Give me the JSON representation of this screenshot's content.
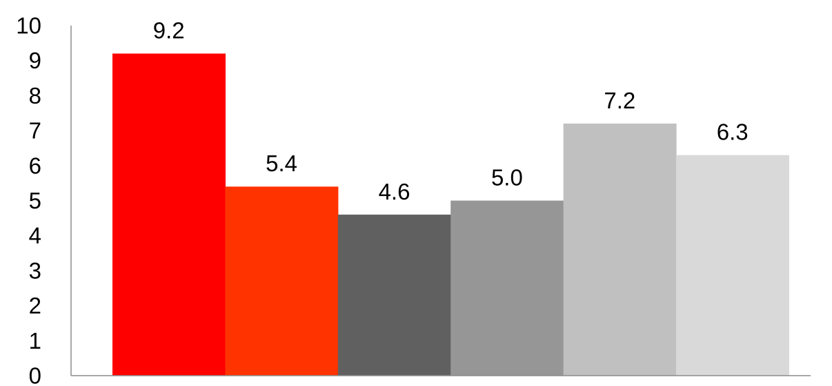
{
  "chart_data": {
    "type": "bar",
    "categories": [
      "",
      "",
      "",
      "",
      "",
      ""
    ],
    "values": [
      9.2,
      5.4,
      4.6,
      5.0,
      7.2,
      6.3
    ],
    "data_labels": [
      "9.2",
      "5.4",
      "4.6",
      "5.0",
      "7.2",
      "6.3"
    ],
    "colors": [
      "#ff0000",
      "#ff3300",
      "#606060",
      "#969696",
      "#c0c0c0",
      "#d9d9d9"
    ],
    "title": "",
    "xlabel": "",
    "ylabel": "",
    "ylim": [
      0,
      10
    ],
    "yticks": [
      "0",
      "1",
      "2",
      "3",
      "4",
      "5",
      "6",
      "7",
      "8",
      "9",
      "10"
    ],
    "grid": false,
    "legend": "none"
  }
}
